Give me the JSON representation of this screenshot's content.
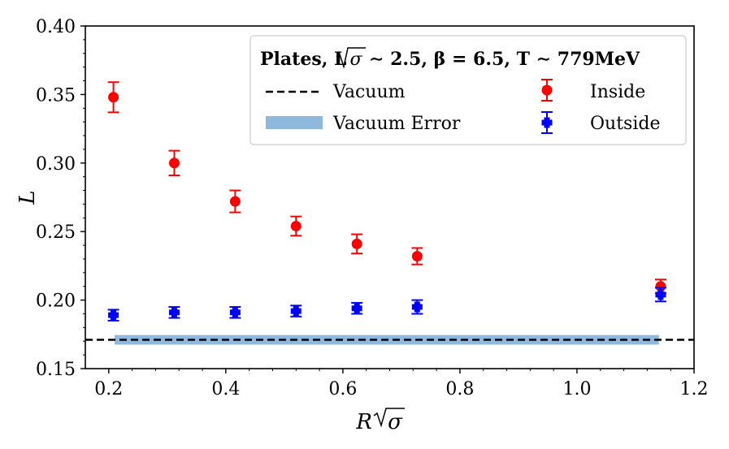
{
  "chart_data": {
    "type": "scatter",
    "title": "",
    "xlabel": "R√σ",
    "ylabel": "L",
    "xlim": [
      0.16,
      1.2
    ],
    "ylim": [
      0.15,
      0.4
    ],
    "xticks": [
      0.2,
      0.4,
      0.6,
      0.8,
      1.0,
      1.2
    ],
    "xtick_labels": [
      "0.2",
      "0.4",
      "0.6",
      "0.8",
      "1.0",
      "1.2"
    ],
    "yticks": [
      0.15,
      0.2,
      0.25,
      0.3,
      0.35,
      0.4
    ],
    "ytick_labels": [
      "0.15",
      "0.20",
      "0.25",
      "0.30",
      "0.35",
      "0.40"
    ],
    "grid": false,
    "legend": {
      "placement": "top-right",
      "title": "Plates, L√σ ∼ 2.5, β = 6.5, T ∼ 779MeV",
      "entries": [
        "Vacuum",
        "Inside",
        "Vacuum Error",
        "Outside"
      ]
    },
    "vacuum": {
      "name": "Vacuum",
      "value": 0.171,
      "color": "#000000",
      "style": "dashed"
    },
    "vacuum_error": {
      "name": "Vacuum Error",
      "x_range": [
        0.21,
        1.14
      ],
      "y_range": [
        0.1675,
        0.1745
      ],
      "color": "#8fb9dc"
    },
    "series": [
      {
        "name": "Inside",
        "color": "#ff0000",
        "marker": "circle",
        "x": [
          0.208,
          0.312,
          0.416,
          0.52,
          0.624,
          0.727,
          1.143
        ],
        "y": [
          0.348,
          0.3,
          0.272,
          0.254,
          0.241,
          0.232,
          0.21
        ],
        "err": [
          0.011,
          0.009,
          0.008,
          0.007,
          0.007,
          0.006,
          0.005
        ]
      },
      {
        "name": "Outside",
        "color": "#0000ff",
        "marker": "plus",
        "x": [
          0.208,
          0.312,
          0.416,
          0.52,
          0.624,
          0.727,
          1.143
        ],
        "y": [
          0.189,
          0.191,
          0.191,
          0.192,
          0.194,
          0.195,
          0.204
        ],
        "err": [
          0.004,
          0.004,
          0.004,
          0.004,
          0.004,
          0.005,
          0.005
        ]
      }
    ]
  }
}
